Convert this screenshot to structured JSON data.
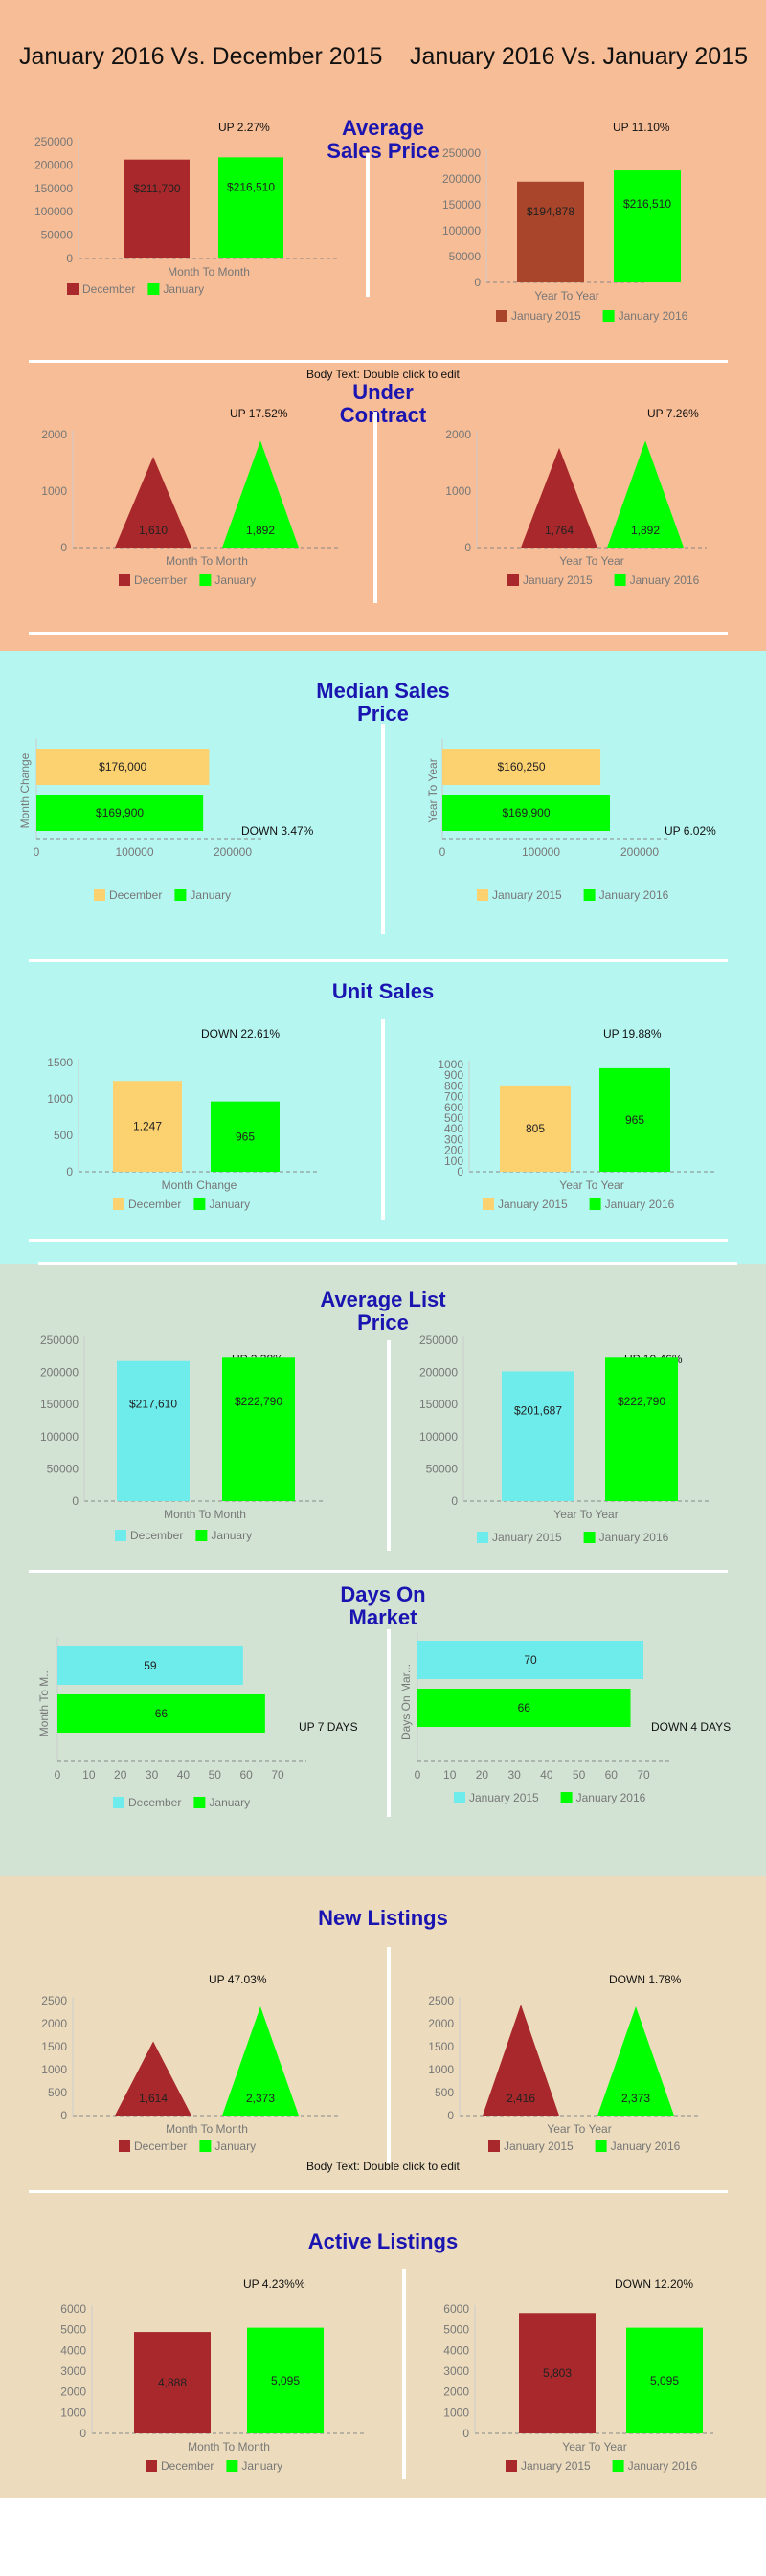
{
  "header": {
    "left": "January 2016 Vs. December 2015",
    "right": "January 2016 Vs. January 2015"
  },
  "placeholders": [
    "Body Text: Double click to edit",
    "Body Text: Double click to edit"
  ],
  "colors": {
    "band1": "#f7bd96",
    "band2": "#b6f6f1",
    "band3": "#d2e3d4",
    "band4": "#ecdcbd",
    "title": "#1a14b0",
    "dark_red": "#a8282b",
    "brown": "#a9452a",
    "green": "#00ff00",
    "gold": "#fcd170",
    "cyan": "#6eecec",
    "axis": "#888888"
  },
  "sections": [
    {
      "title": "Average\nSales Price"
    },
    {
      "title": "Under\nContract"
    },
    {
      "title": "Median Sales\nPrice"
    },
    {
      "title": "Unit Sales"
    },
    {
      "title": "Average List\nPrice"
    },
    {
      "title": "Days On\nMarket"
    },
    {
      "title": "New Listings"
    },
    {
      "title": "Active Listings"
    }
  ],
  "chart_data": [
    {
      "id": "avg_sales_mtm",
      "type": "bar",
      "xlabel": "Month To Month",
      "change": "UP 2.27%",
      "ylim": [
        0,
        250000
      ],
      "yticks": [
        "0",
        "50000",
        "100000",
        "150000",
        "200000",
        "250000"
      ],
      "categories": [
        "December",
        "January"
      ],
      "values": [
        211700,
        216510
      ],
      "labels": [
        "$211,700",
        "$216,510"
      ],
      "colors": [
        "#a8282b",
        "#00ff00"
      ]
    },
    {
      "id": "avg_sales_yty",
      "type": "bar",
      "xlabel": "Year To Year",
      "change": "UP 11.10%",
      "ylim": [
        0,
        250000
      ],
      "yticks": [
        "0",
        "50000",
        "100000",
        "150000",
        "200000",
        "250000"
      ],
      "categories": [
        "January 2015",
        "January 2016"
      ],
      "values": [
        194878,
        216510
      ],
      "labels": [
        "$194,878",
        "$216,510"
      ],
      "colors": [
        "#a9452a",
        "#00ff00"
      ]
    },
    {
      "id": "contract_mtm",
      "type": "triangle",
      "xlabel": "Month To Month",
      "change": "UP 17.52%",
      "ylim": [
        0,
        2000
      ],
      "yticks": [
        "0",
        "1000",
        "2000"
      ],
      "categories": [
        "December",
        "January"
      ],
      "values": [
        1610,
        1892
      ],
      "labels": [
        "1,610",
        "1,892"
      ],
      "colors": [
        "#a8282b",
        "#00ff00"
      ]
    },
    {
      "id": "contract_yty",
      "type": "triangle",
      "xlabel": "Year To Year",
      "change": "UP 7.26%",
      "ylim": [
        0,
        2000
      ],
      "yticks": [
        "0",
        "1000",
        "2000"
      ],
      "categories": [
        "January 2015",
        "January 2016"
      ],
      "values": [
        1764,
        1892
      ],
      "labels": [
        "1,764",
        "1,892"
      ],
      "colors": [
        "#a8282b",
        "#00ff00"
      ]
    },
    {
      "id": "median_mtm",
      "type": "hbar",
      "ylabel": "Month Change",
      "change": "DOWN 3.47%",
      "xlim": [
        0,
        200000
      ],
      "xticks": [
        "0",
        "100000",
        "200000"
      ],
      "categories": [
        "December",
        "January"
      ],
      "values": [
        176000,
        169900
      ],
      "labels": [
        "$176,000",
        "$169,900"
      ],
      "colors": [
        "#fcd170",
        "#00ff00"
      ]
    },
    {
      "id": "median_yty",
      "type": "hbar",
      "ylabel": "Year To Year",
      "change": "UP 6.02%",
      "xlim": [
        0,
        200000
      ],
      "xticks": [
        "0",
        "100000",
        "200000"
      ],
      "categories": [
        "January 2015",
        "January 2016"
      ],
      "values": [
        160250,
        169900
      ],
      "labels": [
        "$160,250",
        "$169,900"
      ],
      "colors": [
        "#fcd170",
        "#00ff00"
      ]
    },
    {
      "id": "units_mtm",
      "type": "bar",
      "xlabel": "Month Change",
      "change": "DOWN 22.61%",
      "ylim": [
        0,
        1500
      ],
      "yticks": [
        "0",
        "500",
        "1000",
        "1500"
      ],
      "categories": [
        "December",
        "January"
      ],
      "values": [
        1247,
        965
      ],
      "labels": [
        "1,247",
        "965"
      ],
      "colors": [
        "#fcd170",
        "#00ff00"
      ]
    },
    {
      "id": "units_yty",
      "type": "bar",
      "xlabel": "Year To Year",
      "change": "UP 19.88%",
      "ylim": [
        0,
        1000
      ],
      "yticks": [
        "0",
        "100",
        "200",
        "300",
        "400",
        "500",
        "600",
        "700",
        "800",
        "900",
        "1000"
      ],
      "categories": [
        "January 2015",
        "January 2016"
      ],
      "values": [
        805,
        965
      ],
      "labels": [
        "805",
        "965"
      ],
      "colors": [
        "#fcd170",
        "#00ff00"
      ]
    },
    {
      "id": "list_mtm",
      "type": "bar",
      "xlabel": "Month To Month",
      "change": "UP 2.38%",
      "ylim": [
        0,
        250000
      ],
      "yticks": [
        "0",
        "50000",
        "100000",
        "150000",
        "200000",
        "250000"
      ],
      "categories": [
        "December",
        "January"
      ],
      "values": [
        217610,
        222790
      ],
      "labels": [
        "$217,610",
        "$222,790"
      ],
      "colors": [
        "#6eecec",
        "#00ff00"
      ]
    },
    {
      "id": "list_yty",
      "type": "bar",
      "xlabel": "Year To Year",
      "change": "UP 10.46%",
      "ylim": [
        0,
        250000
      ],
      "yticks": [
        "0",
        "50000",
        "100000",
        "150000",
        "200000",
        "250000"
      ],
      "categories": [
        "January 2015",
        "January 2016"
      ],
      "values": [
        201687,
        222790
      ],
      "labels": [
        "$201,687",
        "$222,790"
      ],
      "colors": [
        "#6eecec",
        "#00ff00"
      ]
    },
    {
      "id": "dom_mtm",
      "type": "hbar",
      "ylabel": "Month To M...",
      "change": "UP 7 DAYS",
      "xlim": [
        0,
        70
      ],
      "xticks": [
        "0",
        "10",
        "20",
        "30",
        "40",
        "50",
        "60",
        "70"
      ],
      "categories": [
        "December",
        "January"
      ],
      "values": [
        59,
        66
      ],
      "labels": [
        "59",
        "66"
      ],
      "colors": [
        "#6eecec",
        "#00ff00"
      ]
    },
    {
      "id": "dom_yty",
      "type": "hbar",
      "ylabel": "Days On Mar...",
      "change": "DOWN 4 DAYS",
      "xlim": [
        0,
        70
      ],
      "xticks": [
        "0",
        "10",
        "20",
        "30",
        "40",
        "50",
        "60",
        "70"
      ],
      "categories": [
        "January 2015",
        "January 2016"
      ],
      "values": [
        70,
        66
      ],
      "labels": [
        "70",
        "66"
      ],
      "colors": [
        "#6eecec",
        "#00ff00"
      ]
    },
    {
      "id": "new_mtm",
      "type": "triangle",
      "xlabel": "Month To Month",
      "change": "UP 47.03%",
      "ylim": [
        0,
        2500
      ],
      "yticks": [
        "0",
        "500",
        "1000",
        "1500",
        "2000",
        "2500"
      ],
      "categories": [
        "December",
        "January"
      ],
      "values": [
        1614,
        2373
      ],
      "labels": [
        "1,614",
        "2,373"
      ],
      "colors": [
        "#a8282b",
        "#00ff00"
      ]
    },
    {
      "id": "new_yty",
      "type": "triangle",
      "xlabel": "Year To Year",
      "change": "DOWN 1.78%",
      "ylim": [
        0,
        2500
      ],
      "yticks": [
        "0",
        "500",
        "1000",
        "1500",
        "2000",
        "2500"
      ],
      "categories": [
        "January 2015",
        "January 2016"
      ],
      "values": [
        2416,
        2373
      ],
      "labels": [
        "2,416",
        "2,373"
      ],
      "colors": [
        "#a8282b",
        "#00ff00"
      ]
    },
    {
      "id": "active_mtm",
      "type": "bar",
      "xlabel": "Month To Month",
      "change": "UP 4.23%%",
      "ylim": [
        0,
        6000
      ],
      "yticks": [
        "0",
        "1000",
        "2000",
        "3000",
        "4000",
        "5000",
        "6000"
      ],
      "categories": [
        "December",
        "January"
      ],
      "values": [
        4888,
        5095
      ],
      "labels": [
        "4,888",
        "5,095"
      ],
      "colors": [
        "#a8282b",
        "#00ff00"
      ]
    },
    {
      "id": "active_yty",
      "type": "bar",
      "xlabel": "Year To Year",
      "change": "DOWN 12.20%",
      "ylim": [
        0,
        6000
      ],
      "yticks": [
        "0",
        "1000",
        "2000",
        "3000",
        "4000",
        "5000",
        "6000"
      ],
      "categories": [
        "January 2015",
        "January 2016"
      ],
      "values": [
        5803,
        5095
      ],
      "labels": [
        "5,803",
        "5,095"
      ],
      "colors": [
        "#a8282b",
        "#00ff00"
      ]
    }
  ]
}
